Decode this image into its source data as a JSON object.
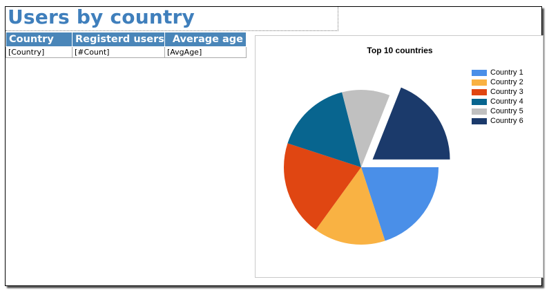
{
  "report": {
    "title": "Users by country",
    "table": {
      "headers": [
        "Country",
        "Registerd users",
        "Average age"
      ],
      "row": [
        "[Country]",
        "[#Count]",
        "[AvgAge]"
      ]
    }
  },
  "chart_data": {
    "type": "pie",
    "title": "Top 10 countries",
    "legend_position": "top-right",
    "categories": [
      "Country 1",
      "Country 2",
      "Country 3",
      "Country 4",
      "Country 5",
      "Country 6"
    ],
    "values": [
      20,
      15,
      20,
      16,
      10,
      19
    ],
    "colors": [
      "#4a8fe8",
      "#f9b243",
      "#e04612",
      "#08658f",
      "#c0c0c0",
      "#1b3a6b"
    ],
    "exploded": "Country 6"
  }
}
